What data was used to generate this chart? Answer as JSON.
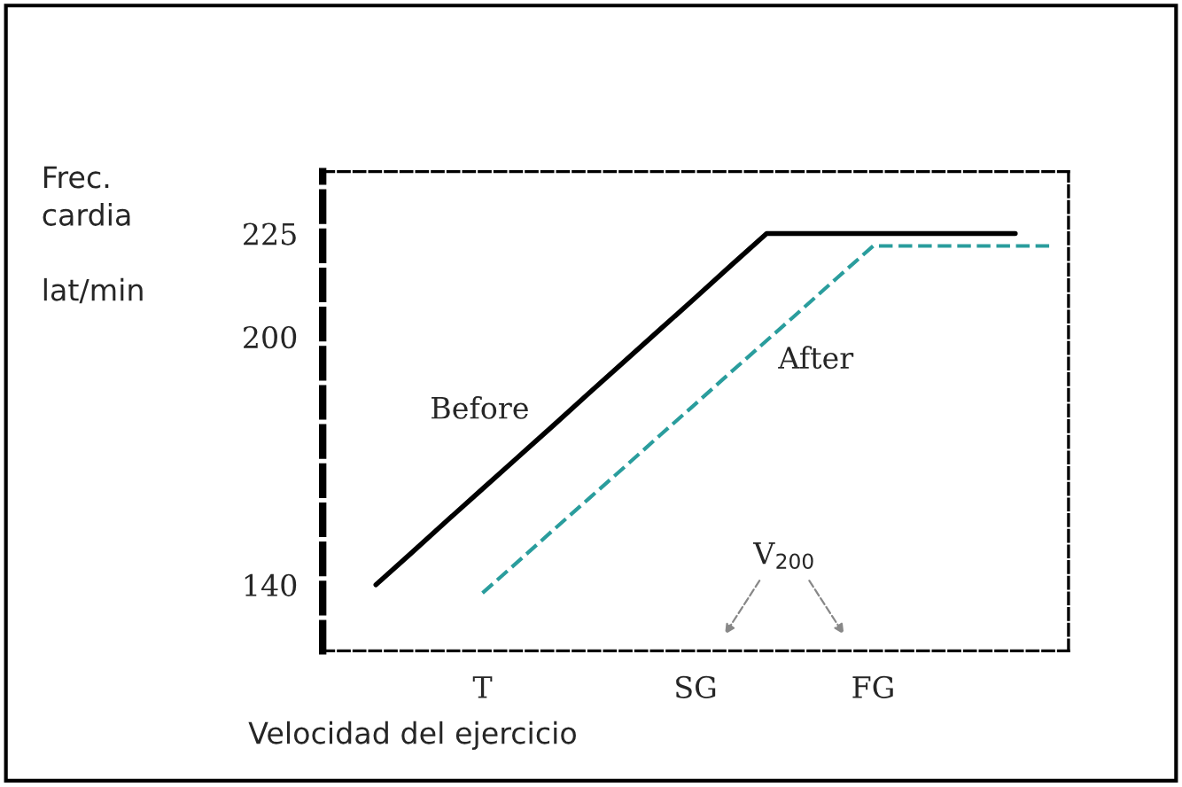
{
  "chart_data": {
    "type": "line",
    "ylabel": "Frec.\ncardia\n\nlat/min",
    "xlabel": "Velocidad del ejercicio",
    "categories": [
      null,
      null,
      null,
      null,
      "T",
      null,
      null,
      null,
      null,
      null,
      "SG",
      null,
      null,
      null,
      null,
      "FG",
      null,
      null,
      null,
      null,
      null
    ],
    "ylim": [
      124,
      240
    ],
    "yticks": [
      140,
      200,
      225
    ],
    "series": [
      {
        "name": "Before",
        "color": "#000000",
        "line_style": "solid",
        "values": [
          null,
          140,
          147.7,
          155.5,
          163.2,
          170.9,
          178.6,
          186.4,
          194.1,
          201.8,
          209.5,
          217.3,
          225,
          225,
          225,
          225,
          225,
          225,
          225,
          225,
          null
        ]
      },
      {
        "name": "After",
        "color": "#2a9d9d",
        "line_style": "dashed",
        "values": [
          null,
          null,
          null,
          null,
          138,
          145.6,
          153.3,
          160.9,
          168.5,
          176.2,
          183.8,
          191.5,
          199.1,
          206.7,
          214.4,
          222,
          222,
          222,
          222,
          222,
          222
        ]
      }
    ],
    "annotations": [
      "V$_{200}$"
    ],
    "grid": false,
    "legend": false
  }
}
